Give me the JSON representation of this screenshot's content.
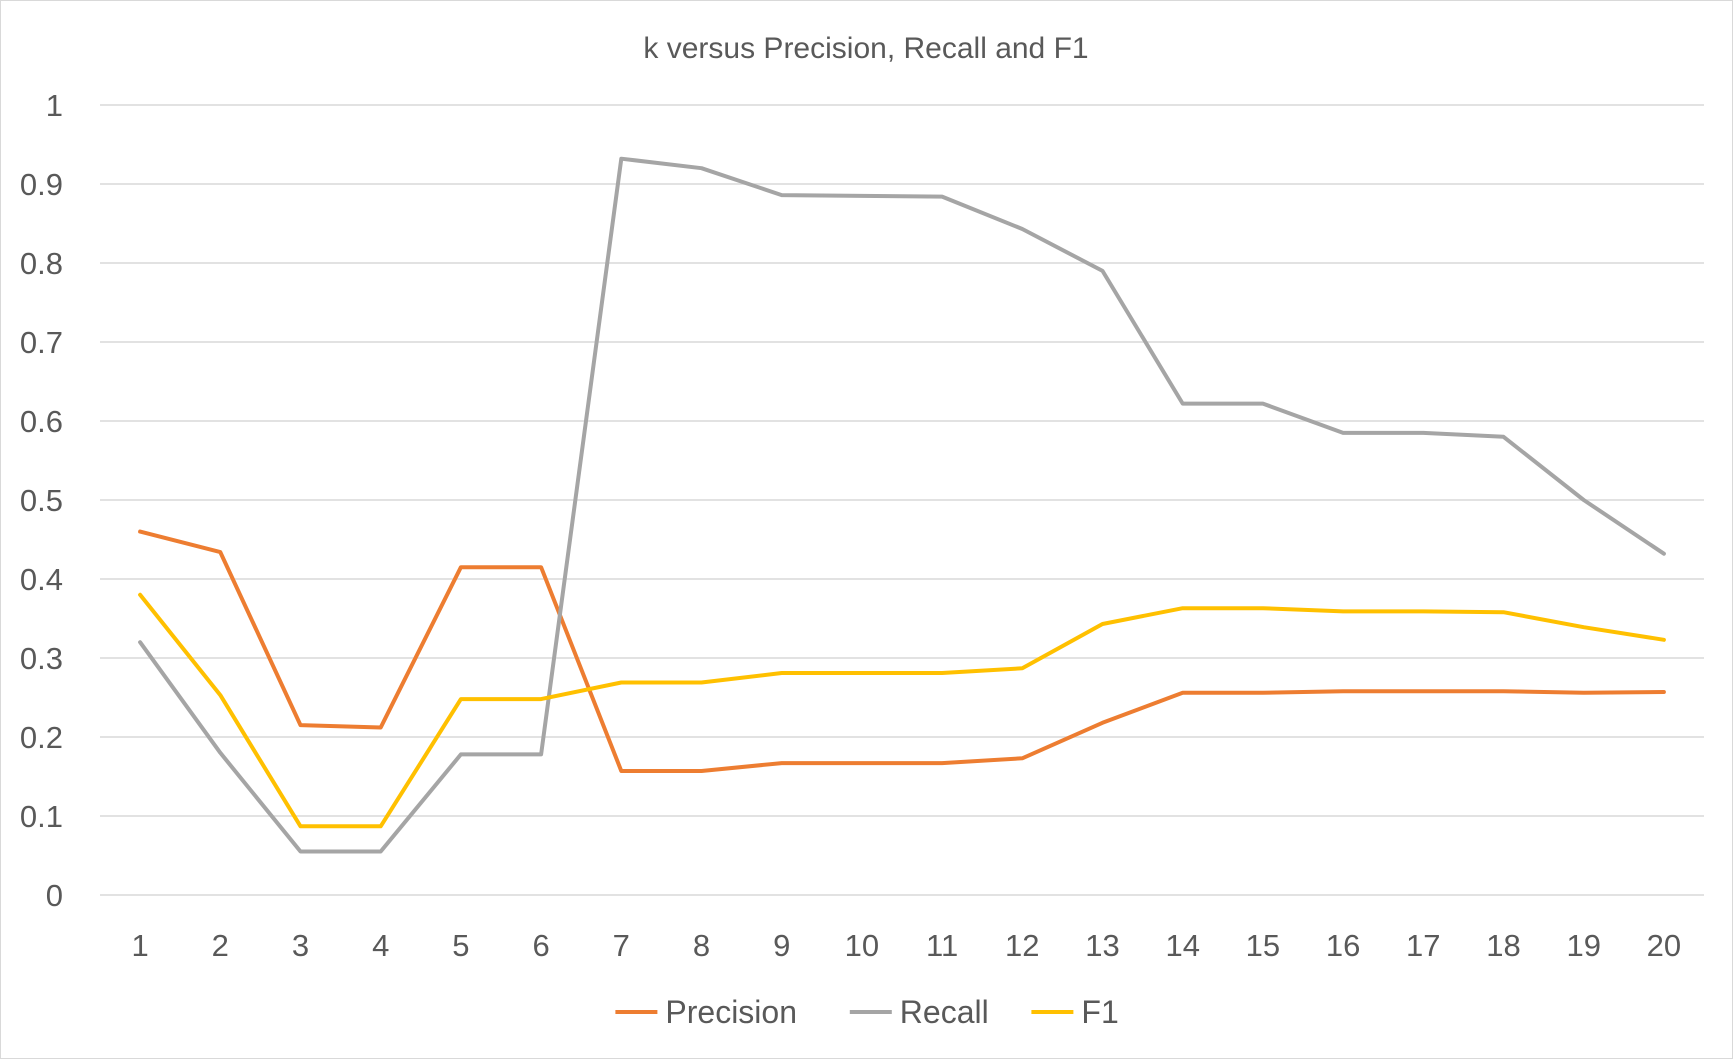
{
  "chart_data": {
    "type": "line",
    "title": "k versus Precision, Recall and F1",
    "xlabel": "",
    "ylabel": "",
    "categories": [
      "1",
      "2",
      "3",
      "4",
      "5",
      "6",
      "7",
      "8",
      "9",
      "10",
      "11",
      "12",
      "13",
      "14",
      "15",
      "16",
      "17",
      "18",
      "19",
      "20"
    ],
    "ylim": [
      0,
      1
    ],
    "yticks": [
      "0",
      "0.1",
      "0.2",
      "0.3",
      "0.4",
      "0.5",
      "0.6",
      "0.7",
      "0.8",
      "0.9",
      "1"
    ],
    "grid": true,
    "legend_position": "bottom",
    "series": [
      {
        "name": "Precision",
        "color": "#ED7D31",
        "values": [
          0.46,
          0.434,
          0.215,
          0.212,
          0.415,
          0.415,
          0.157,
          0.157,
          0.167,
          0.167,
          0.167,
          0.173,
          0.218,
          0.256,
          0.256,
          0.258,
          0.258,
          0.258,
          0.256,
          0.257
        ]
      },
      {
        "name": "Recall",
        "color": "#A5A5A5",
        "values": [
          0.32,
          0.18,
          0.055,
          0.055,
          0.178,
          0.178,
          0.932,
          0.92,
          0.886,
          0.885,
          0.884,
          0.843,
          0.79,
          0.622,
          0.622,
          0.585,
          0.585,
          0.58,
          0.5,
          0.432
        ]
      },
      {
        "name": "F1",
        "color": "#FFC000",
        "values": [
          0.38,
          0.253,
          0.087,
          0.087,
          0.248,
          0.248,
          0.269,
          0.269,
          0.281,
          0.281,
          0.281,
          0.287,
          0.343,
          0.363,
          0.363,
          0.359,
          0.359,
          0.358,
          0.339,
          0.323
        ]
      }
    ]
  }
}
